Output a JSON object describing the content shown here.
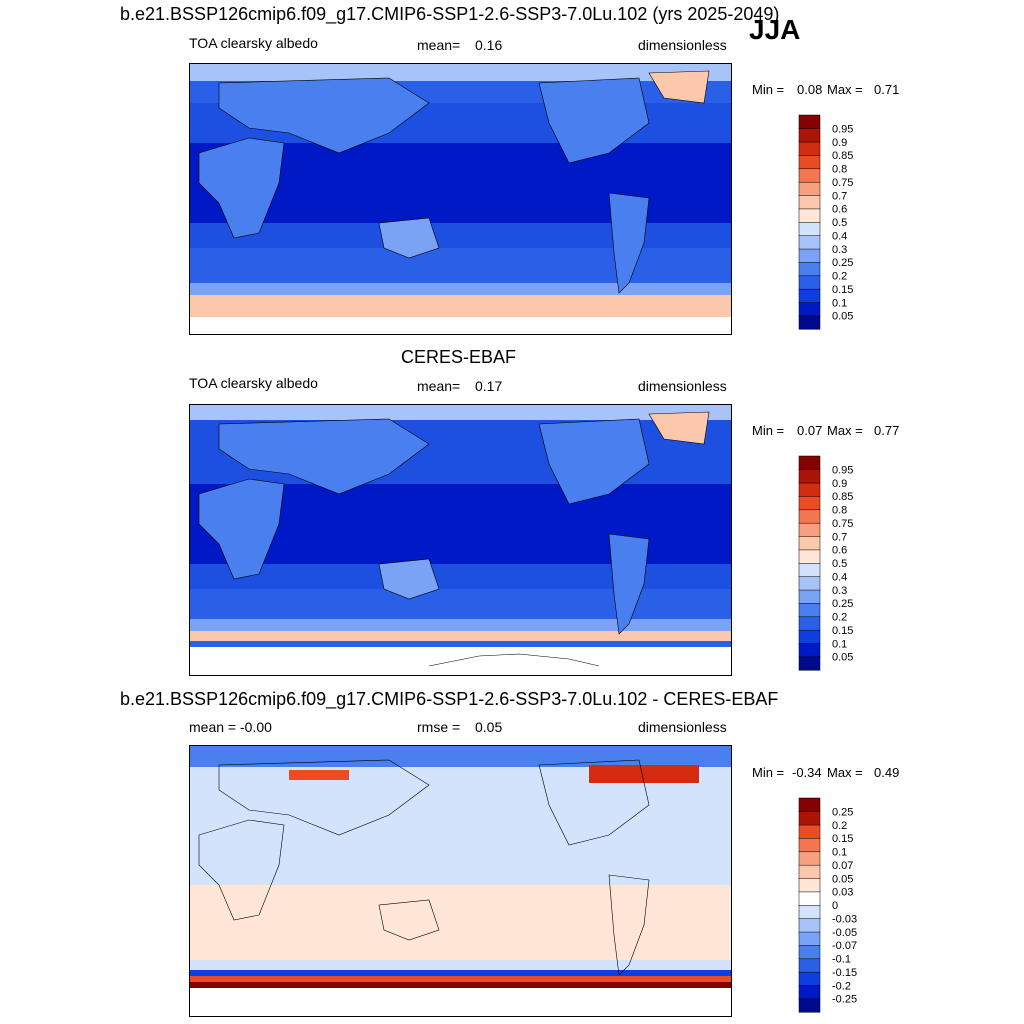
{
  "season": "JJA",
  "panels": [
    {
      "title": "b.e21.BSSP126cmip6.f09_g17.CMIP6-SSP1-2.6-SSP3-7.0Lu.102 (yrs 2025-2049)",
      "left_label": "TOA clearsky albedo",
      "stat_label": "mean=",
      "stat_value": "0.16",
      "units": "dimensionless",
      "min_label": "Min =",
      "min_value": "0.08",
      "max_label": "Max =",
      "max_value": "0.71"
    },
    {
      "title": "CERES-EBAF",
      "left_label": "TOA clearsky albedo",
      "stat_label": "mean=",
      "stat_value": "0.17",
      "units": "dimensionless",
      "min_label": "Min =",
      "min_value": "0.07",
      "max_label": "Max =",
      "max_value": "0.77"
    },
    {
      "title": "b.e21.BSSP126cmip6.f09_g17.CMIP6-SSP1-2.6-SSP3-7.0Lu.102 - CERES-EBAF",
      "left_label": "mean =  -0.00",
      "stat_label": "rmse =",
      "stat_value": "0.05",
      "units": "dimensionless",
      "min_label": "Min =",
      "min_value": "-0.34",
      "max_label": "Max =",
      "max_value": "0.49"
    }
  ],
  "chart_data": [
    {
      "type": "heatmap",
      "title": "b.e21.BSSP126cmip6.f09_g17.CMIP6-SSP1-2.6-SSP3-7.0Lu.102 (yrs 2025-2049)",
      "variable": "TOA clearsky albedo",
      "units": "dimensionless",
      "mean": 0.16,
      "min": 0.08,
      "max": 0.71,
      "colorbar_levels": [
        "0.05",
        "0.1",
        "0.15",
        "0.2",
        "0.25",
        "0.3",
        "0.4",
        "0.5",
        "0.6",
        "0.7",
        "0.75",
        "0.8",
        "0.85",
        "0.9",
        "0.95"
      ],
      "colorbar_colors": [
        "#000a8e",
        "#0019c6",
        "#0d3fe0",
        "#2a5fe8",
        "#4a7ff0",
        "#7aa2f5",
        "#a7c3f8",
        "#d3e3fb",
        "#ffe6d6",
        "#fbc8ac",
        "#f7a07e",
        "#f4774f",
        "#ec4c24",
        "#d42c10",
        "#ac1406",
        "#830300"
      ]
    },
    {
      "type": "heatmap",
      "title": "CERES-EBAF",
      "variable": "TOA clearsky albedo",
      "units": "dimensionless",
      "mean": 0.17,
      "min": 0.07,
      "max": 0.77,
      "colorbar_levels": [
        "0.05",
        "0.1",
        "0.15",
        "0.2",
        "0.25",
        "0.3",
        "0.4",
        "0.5",
        "0.6",
        "0.7",
        "0.75",
        "0.8",
        "0.85",
        "0.9",
        "0.95"
      ],
      "colorbar_colors": [
        "#000a8e",
        "#0019c6",
        "#0d3fe0",
        "#2a5fe8",
        "#4a7ff0",
        "#7aa2f5",
        "#a7c3f8",
        "#d3e3fb",
        "#ffe6d6",
        "#fbc8ac",
        "#f7a07e",
        "#f4774f",
        "#ec4c24",
        "#d42c10",
        "#ac1406",
        "#830300"
      ]
    },
    {
      "type": "heatmap",
      "title": "b.e21.BSSP126cmip6.f09_g17.CMIP6-SSP1-2.6-SSP3-7.0Lu.102 - CERES-EBAF",
      "units": "dimensionless",
      "mean": -0.0,
      "rmse": 0.05,
      "min": -0.34,
      "max": 0.49,
      "colorbar_levels": [
        "-0.25",
        "-0.2",
        "-0.15",
        "-0.1",
        "-0.07",
        "-0.05",
        "-0.03",
        "0",
        "0.03",
        "0.05",
        "0.07",
        "0.1",
        "0.15",
        "0.2",
        "0.25"
      ],
      "colorbar_colors": [
        "#000a8e",
        "#0019c6",
        "#0d3fe0",
        "#2a5fe8",
        "#4a7ff0",
        "#7aa2f5",
        "#a7c3f8",
        "#d3e3fb",
        "#ffffff",
        "#ffe6d6",
        "#fbc8ac",
        "#f7a07e",
        "#f4774f",
        "#ec4c24",
        "#ac1406",
        "#830300"
      ]
    }
  ]
}
